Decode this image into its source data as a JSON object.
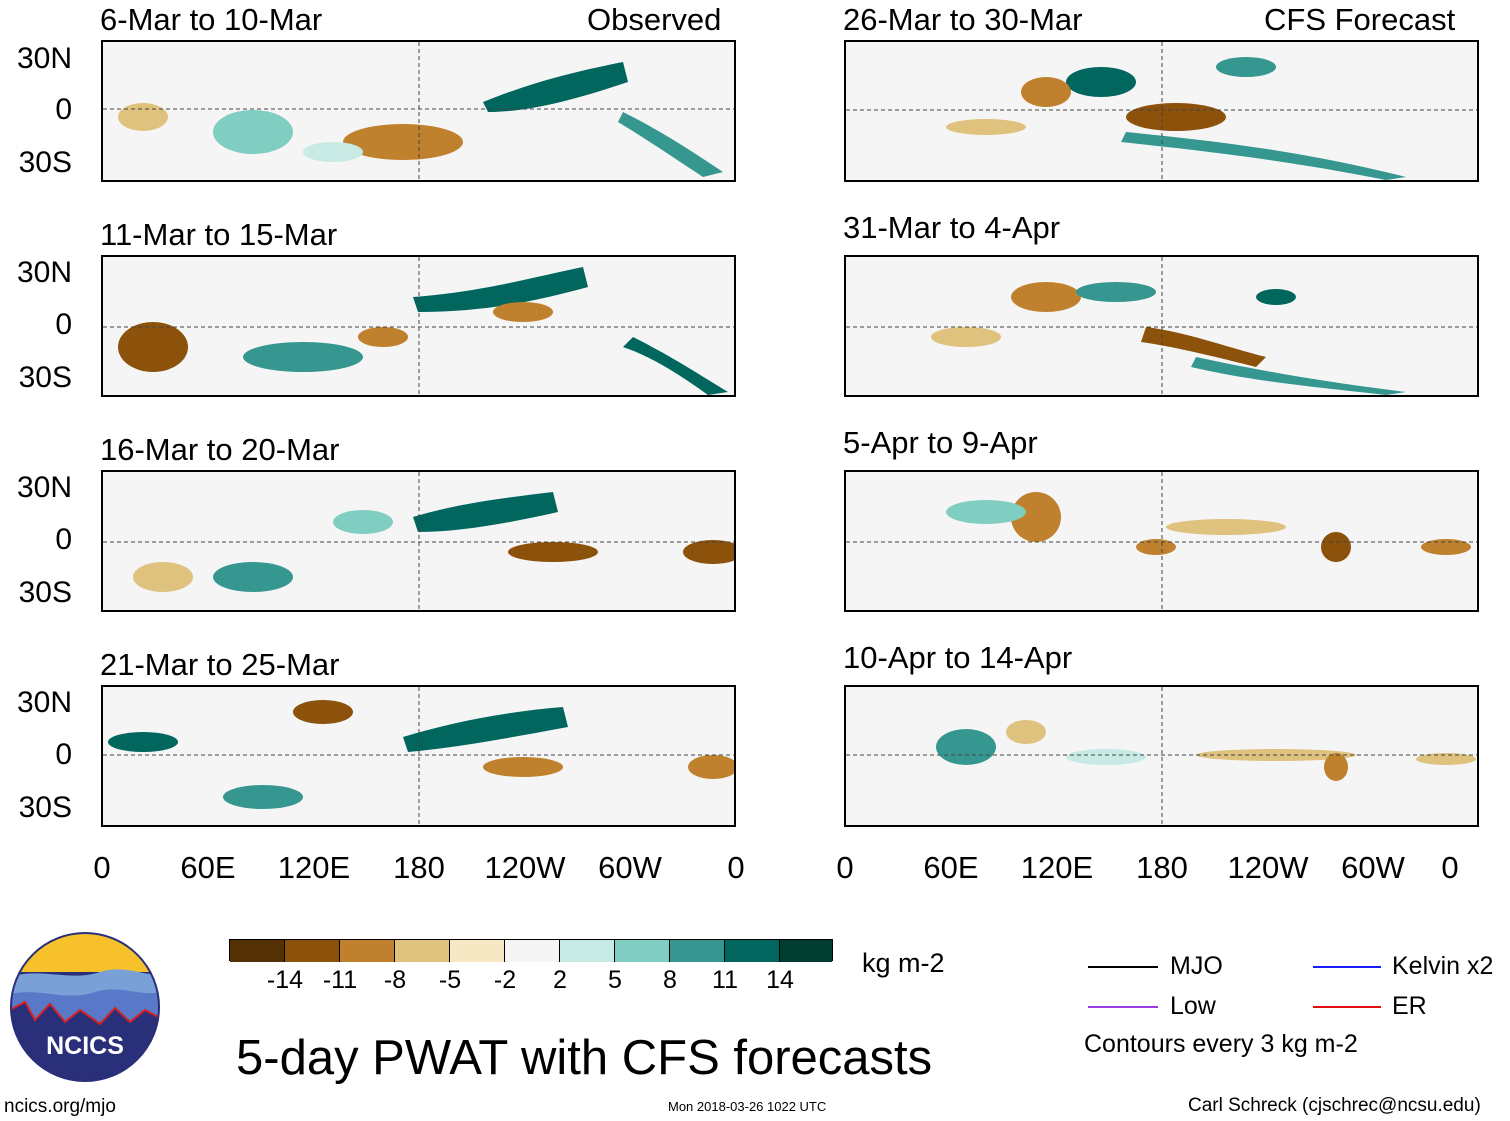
{
  "headers": {
    "observed": "Observed",
    "forecast": "CFS Forecast"
  },
  "panels_left": [
    {
      "title": "6-Mar to 10-Mar"
    },
    {
      "title": "11-Mar to 15-Mar"
    },
    {
      "title": "16-Mar to 20-Mar"
    },
    {
      "title": "21-Mar to 25-Mar"
    }
  ],
  "panels_right": [
    {
      "title": "26-Mar to 30-Mar"
    },
    {
      "title": "31-Mar to 4-Apr"
    },
    {
      "title": "5-Apr to 9-Apr"
    },
    {
      "title": "10-Apr to 14-Apr"
    }
  ],
  "lat_labels": [
    "30N",
    "0",
    "30S"
  ],
  "lon_labels": [
    "0",
    "60E",
    "120E",
    "180",
    "120W",
    "60W",
    "0"
  ],
  "colorbar": {
    "unit": "kg m-2",
    "labels": [
      "-14",
      "-11",
      "-8",
      "-5",
      "-2",
      "2",
      "5",
      "8",
      "11",
      "14"
    ],
    "colors": [
      "#543005",
      "#8c510a",
      "#bf812d",
      "#dfc27d",
      "#f6e8c3",
      "#f5f5f5",
      "#c7eae5",
      "#80cdc1",
      "#35978f",
      "#01665e",
      "#003c30"
    ]
  },
  "legend": {
    "mjo": "MJO",
    "kelvin": "Kelvin x2",
    "low": "Low",
    "er": "ER",
    "contours": "Contours every 3 kg m-2",
    "colors": {
      "mjo": "#000000",
      "kelvin": "#1a1aff",
      "low": "#9a3ce0",
      "er": "#e01010"
    }
  },
  "main_title": "5-day PWAT with CFS forecasts",
  "logo_text": "NCICS",
  "website": "ncics.org/mjo",
  "timestamp": "Mon 2018-03-26 1022 UTC",
  "credit": "Carl Schreck (cjschrec@ncsu.edu)"
}
